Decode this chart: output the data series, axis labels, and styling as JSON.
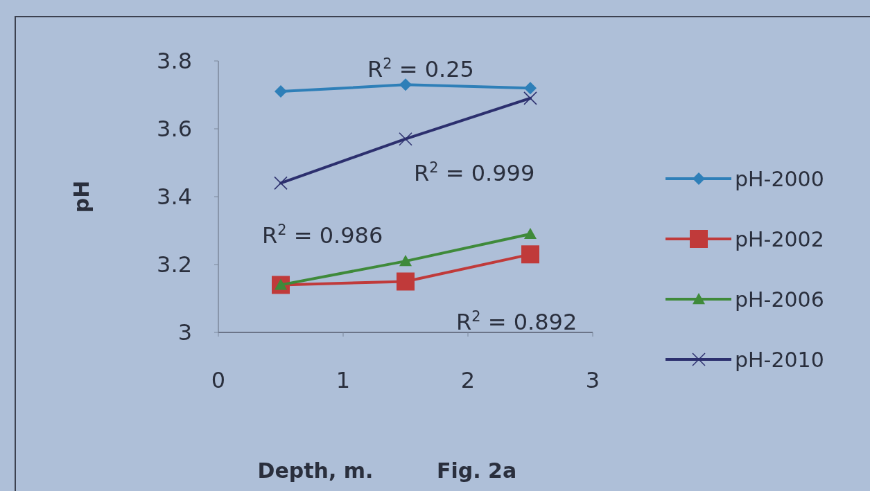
{
  "chart_data": {
    "type": "line",
    "xlabel": "Depth, m.",
    "ylabel": "pH",
    "x": [
      0.5,
      1.5,
      2.5
    ],
    "series": [
      {
        "name": "pH-2000",
        "color": "#2e7fb8",
        "marker": "diamond",
        "values": [
          3.71,
          3.73,
          3.72
        ]
      },
      {
        "name": "pH-2002",
        "color": "#c03a3a",
        "marker": "square",
        "values": [
          3.14,
          3.15,
          3.23
        ]
      },
      {
        "name": "pH-2006",
        "color": "#3f8a3a",
        "marker": "triangle",
        "values": [
          3.14,
          3.21,
          3.29
        ]
      },
      {
        "name": "pH-2010",
        "color": "#2c2f6e",
        "marker": "cross",
        "values": [
          3.44,
          3.57,
          3.69
        ]
      }
    ],
    "xlim": [
      0,
      3
    ],
    "xticks": [
      0,
      1,
      2,
      3
    ],
    "ylim": [
      3,
      3.8
    ],
    "yticks": [
      3,
      3.2,
      3.4,
      3.6,
      3.8
    ],
    "grid": false,
    "legend": "right",
    "annotations": [
      "R$^{2}$ = 0.25",
      "R$^{2}$ = 0.999",
      "R$^{2}$ = 0.986",
      "R$^{2}$ = 0.892",
      "Fig. 2a"
    ]
  }
}
